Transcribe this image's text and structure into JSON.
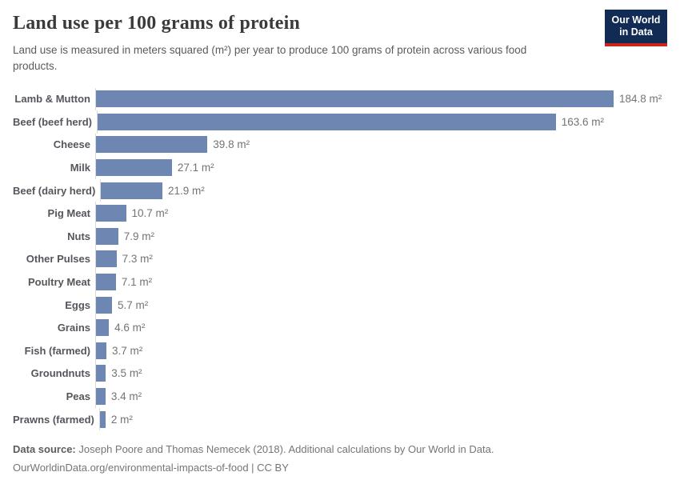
{
  "header": {
    "title": "Land use per 100 grams of protein",
    "subtitle": "Land use is measured in meters squared (m²) per year to produce 100 grams of protein across various food products.",
    "logo_line1": "Our World",
    "logo_line2": "in Data"
  },
  "chart_data": {
    "type": "bar",
    "orientation": "horizontal",
    "title": "Land use per 100 grams of protein",
    "xlabel": "",
    "ylabel": "",
    "xlim": [
      0,
      185
    ],
    "grid": false,
    "legend": false,
    "unit": "m²",
    "categories": [
      "Lamb & Mutton",
      "Beef (beef herd)",
      "Cheese",
      "Milk",
      "Beef (dairy herd)",
      "Pig Meat",
      "Nuts",
      "Other Pulses",
      "Poultry Meat",
      "Eggs",
      "Grains",
      "Fish (farmed)",
      "Groundnuts",
      "Peas",
      "Prawns (farmed)"
    ],
    "values": [
      184.8,
      163.6,
      39.8,
      27.1,
      21.9,
      10.7,
      7.9,
      7.3,
      7.1,
      5.7,
      4.6,
      3.7,
      3.5,
      3.4,
      2
    ],
    "value_labels": [
      "184.8 m²",
      "163.6 m²",
      "39.8 m²",
      "27.1 m²",
      "21.9 m²",
      "10.7 m²",
      "7.9 m²",
      "7.3 m²",
      "7.1 m²",
      "5.7 m²",
      "4.6 m²",
      "3.7 m²",
      "3.5 m²",
      "3.4 m²",
      "2 m²"
    ]
  },
  "footer": {
    "source_label": "Data source:",
    "source_text": "Joseph Poore and Thomas Nemecek (2018). Additional calculations by Our World in Data.",
    "link_line": "OurWorldinData.org/environmental-impacts-of-food | CC BY"
  },
  "colors": {
    "bar_color": "#6e87b2",
    "axis_color": "#d9d9d9",
    "title_color": "#3a3a3a",
    "subtitle_color": "#5b5b5b",
    "label_color": "#55565c",
    "value_color": "#737373",
    "footer_color": "#757575",
    "logo_navy": "#122b54",
    "logo_red": "#c8251d"
  }
}
